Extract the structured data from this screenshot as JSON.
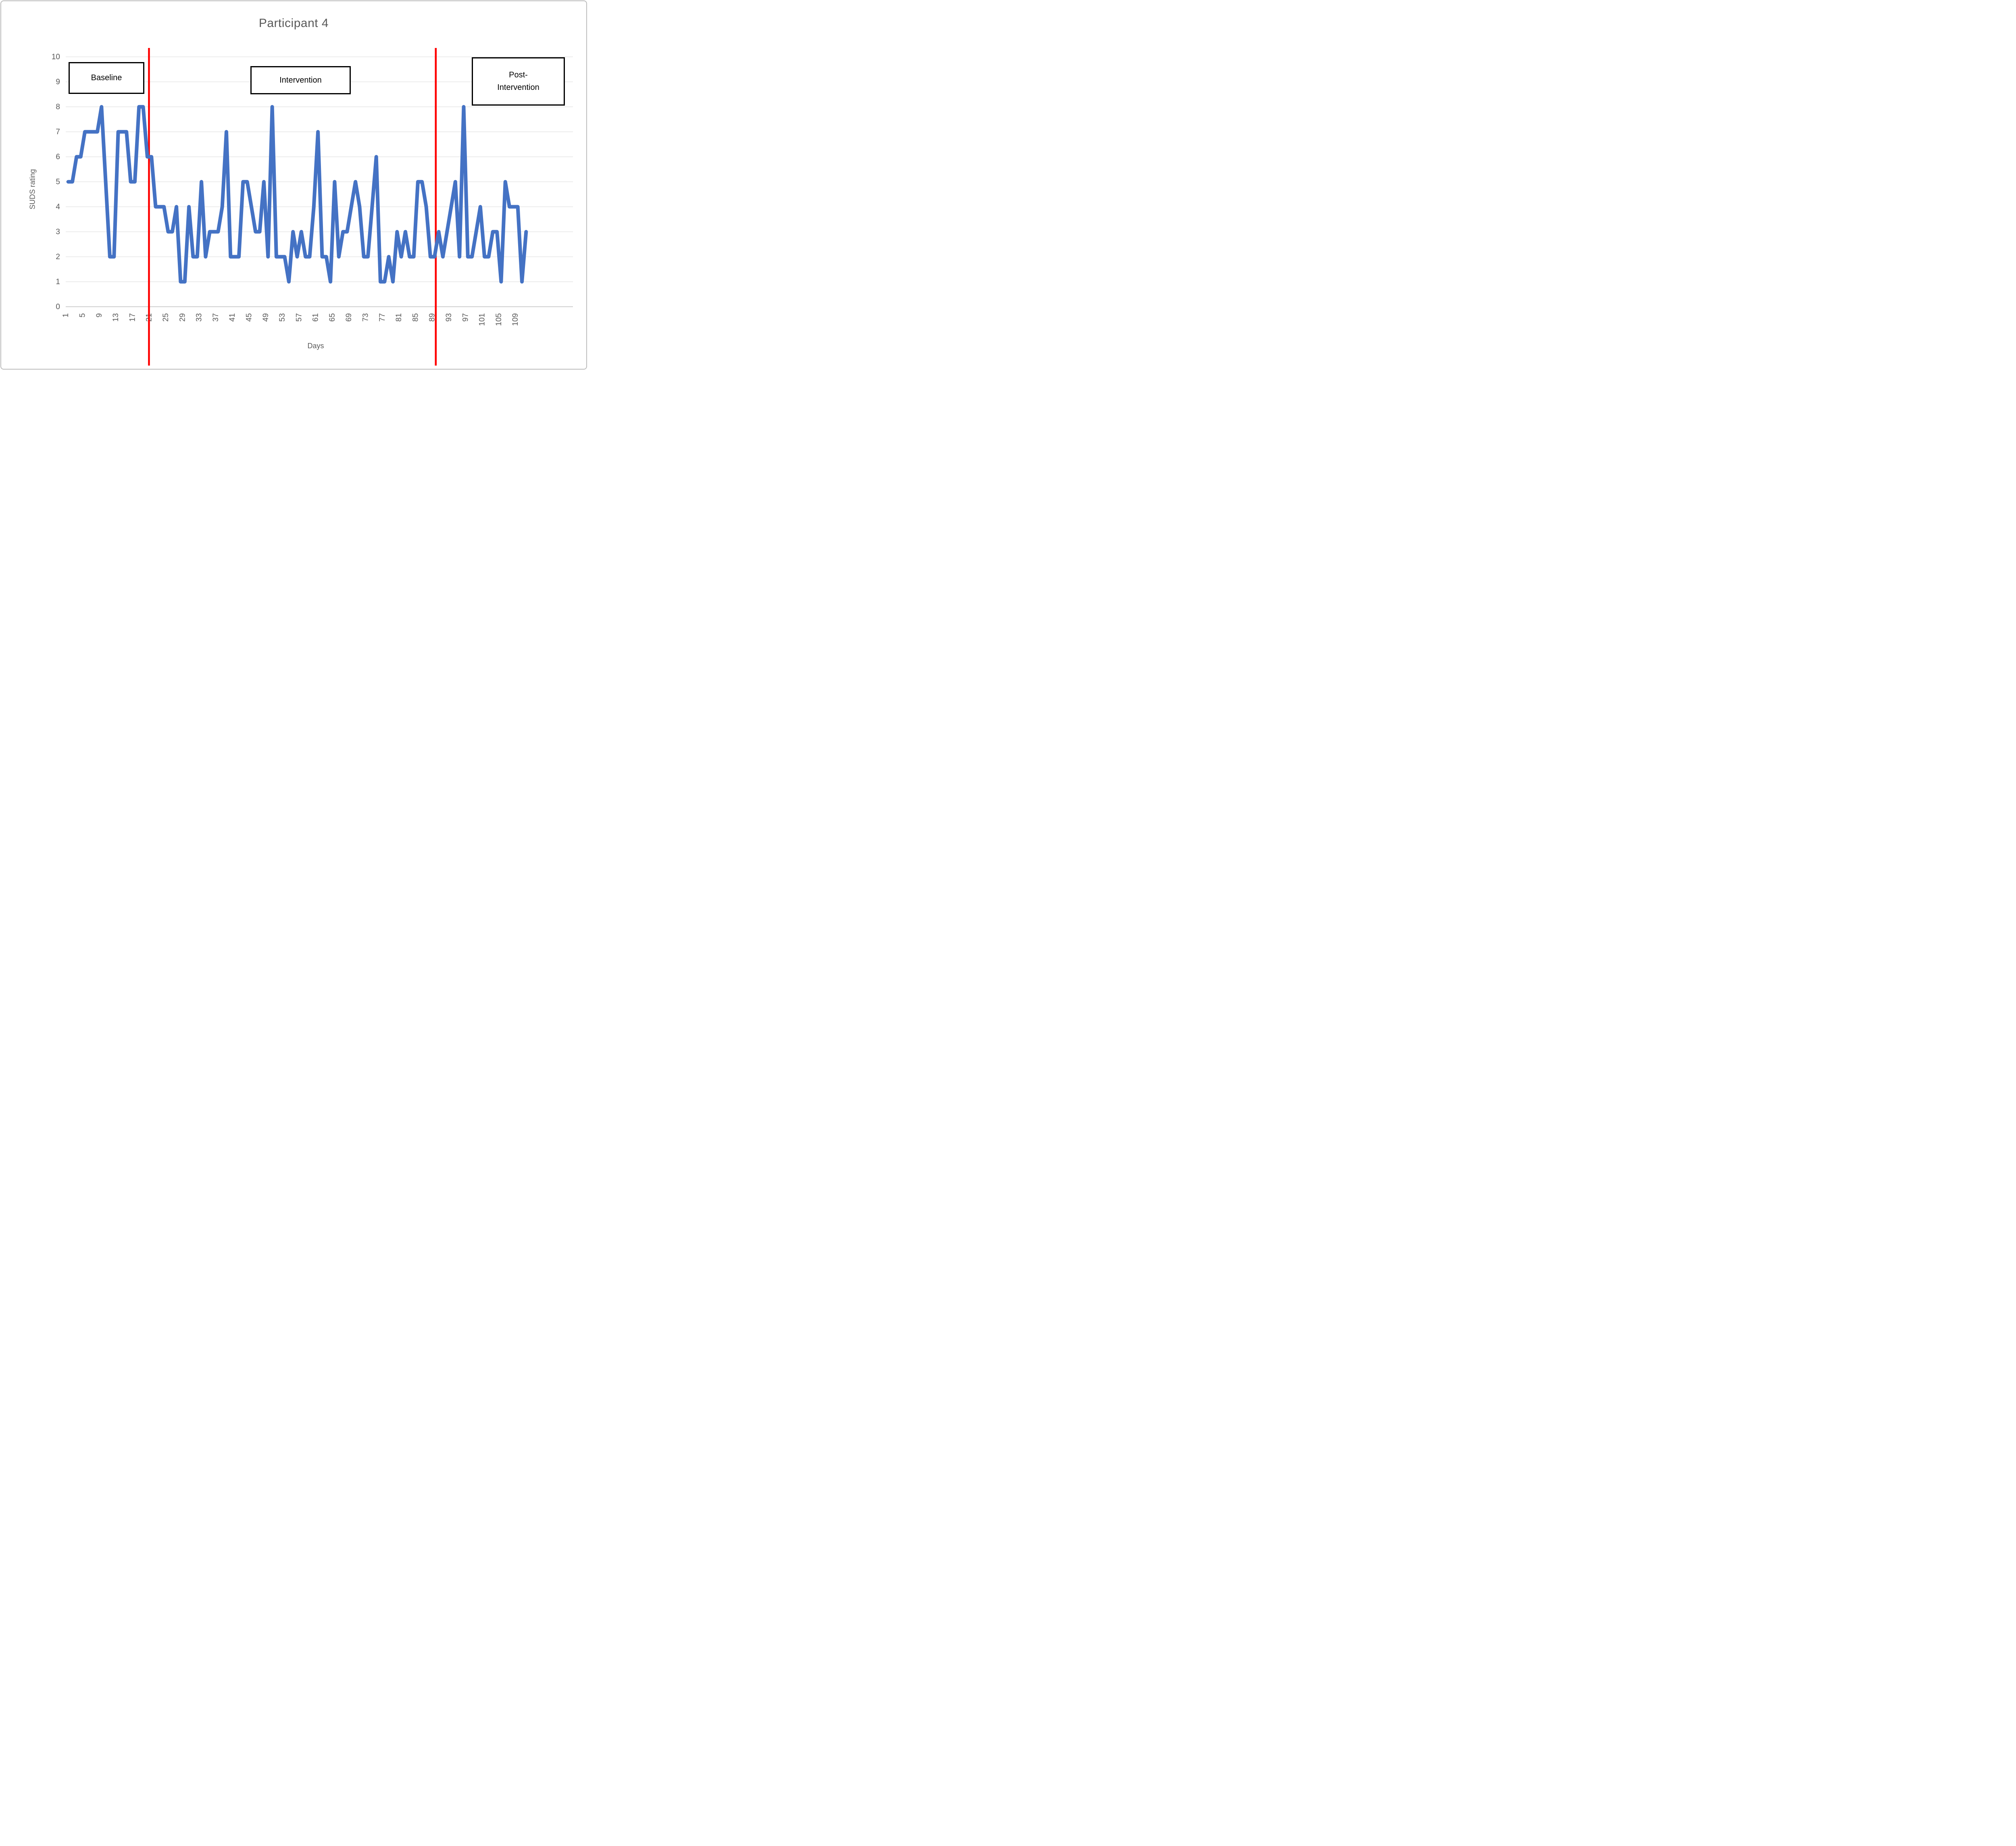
{
  "title": "Participant 4",
  "axis": {
    "xlabel": "Days",
    "ylabel": "SUDS rating"
  },
  "annotations": {
    "baseline": "Baseline",
    "intervention": "Intervention",
    "post_line1": "Post-",
    "post_line2": "Intervention"
  },
  "chart_data": {
    "type": "line",
    "title": "Participant 4",
    "xlabel": "Days",
    "ylabel": "SUDS rating",
    "ylim": [
      0,
      10
    ],
    "yticks": [
      0,
      1,
      2,
      3,
      4,
      5,
      6,
      7,
      8,
      9,
      10
    ],
    "xticks": [
      1,
      5,
      9,
      13,
      17,
      21,
      25,
      29,
      33,
      37,
      41,
      45,
      49,
      53,
      57,
      61,
      65,
      69,
      73,
      77,
      81,
      85,
      89,
      93,
      97,
      101,
      105,
      109
    ],
    "x_start_day": 1,
    "grid": "horizontal",
    "legend": "none",
    "series": [
      {
        "name": "SUDS rating by day",
        "color": "#4472C4",
        "values": [
          5,
          5,
          6,
          6,
          7,
          7,
          7,
          7,
          8,
          5,
          2,
          2,
          7,
          7,
          7,
          5,
          5,
          8,
          8,
          6,
          6,
          4,
          4,
          4,
          3,
          3,
          4,
          1,
          1,
          4,
          2,
          2,
          5,
          2,
          3,
          3,
          3,
          4,
          7,
          2,
          2,
          2,
          5,
          5,
          4,
          3,
          3,
          5,
          2,
          8,
          2,
          2,
          2,
          1,
          3,
          2,
          3,
          2,
          2,
          4,
          7,
          2,
          2,
          1,
          5,
          2,
          3,
          3,
          4,
          5,
          4,
          2,
          2,
          4,
          6,
          1,
          1,
          2,
          1,
          3,
          2,
          3,
          2,
          2,
          5,
          5,
          4,
          2,
          2,
          3,
          2,
          3,
          4,
          5,
          2,
          8,
          2,
          2,
          3,
          4,
          2,
          2,
          3,
          3,
          1,
          5,
          4,
          4,
          4,
          1,
          3
        ]
      }
    ],
    "phase_lines": [
      {
        "label": "end of baseline",
        "x_day": 20.4,
        "color": "#FF0000"
      },
      {
        "label": "end of intervention",
        "x_day": 89.3,
        "color": "#FF0000"
      }
    ],
    "colors": {
      "line": "#4472C4",
      "phase_line": "#FF0000",
      "gridline": "#D9D9D9",
      "axis_line": "#BFBFBF",
      "text": "#595959"
    }
  }
}
